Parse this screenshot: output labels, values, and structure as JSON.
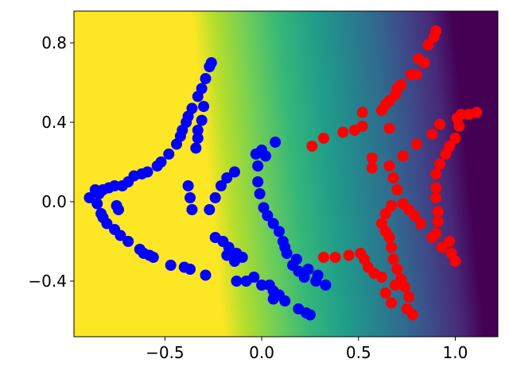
{
  "chart_data": {
    "type": "scatter",
    "xlim": [
      -0.97,
      1.22
    ],
    "ylim": [
      -0.68,
      0.96
    ],
    "xticks": [
      {
        "value": -0.5,
        "label": "−0.5"
      },
      {
        "value": 0.0,
        "label": "0.0"
      },
      {
        "value": 0.5,
        "label": "0.5"
      },
      {
        "value": 1.0,
        "label": "1.0"
      }
    ],
    "yticks": [
      {
        "value": -0.4,
        "label": "−0.4"
      },
      {
        "value": 0.0,
        "label": "0.0"
      },
      {
        "value": 0.4,
        "label": "0.4"
      },
      {
        "value": 0.8,
        "label": "0.8"
      }
    ],
    "series": [
      {
        "color": "#0000ff",
        "x": [
          -0.26,
          -0.27,
          -0.29,
          -0.31,
          -0.33,
          -0.3,
          -0.36,
          -0.38,
          -0.31,
          -0.39,
          -0.41,
          -0.33,
          -0.42,
          -0.33,
          -0.44,
          -0.34,
          -0.48,
          -0.52,
          -0.54,
          -0.59,
          -0.62,
          -0.66,
          -0.69,
          -0.72,
          -0.76,
          -0.79,
          -0.82,
          -0.86,
          -0.89,
          -0.84,
          -0.85,
          -0.83,
          -0.82,
          -0.8,
          -0.76,
          -0.73,
          -0.69,
          -0.63,
          -0.61,
          -0.58,
          -0.56,
          -0.47,
          -0.4,
          -0.37,
          -0.29,
          -0.75,
          -0.74,
          -0.38,
          -0.37,
          -0.36,
          -0.27,
          -0.24,
          -0.21,
          -0.18,
          -0.14,
          -0.03,
          0.0,
          0.07,
          0.02,
          -0.02,
          -0.02,
          -0.01,
          0.01,
          0.03,
          0.06,
          0.09,
          0.11,
          0.12,
          0.13,
          0.16,
          0.19,
          0.22,
          0.28,
          0.33,
          0.29,
          0.24,
          0.18,
          -0.24,
          -0.2,
          -0.17,
          -0.13,
          -0.1,
          -0.18,
          -0.14,
          -0.13,
          -0.08,
          -0.04,
          0.0,
          0.04,
          0.06,
          0.09,
          0.12,
          0.19,
          0.23,
          0.25,
          0.06
        ],
        "values": [
          0.7,
          0.68,
          0.62,
          0.57,
          0.53,
          0.48,
          0.47,
          0.43,
          0.41,
          0.4,
          0.36,
          0.36,
          0.33,
          0.32,
          0.29,
          0.27,
          0.24,
          0.2,
          0.18,
          0.15,
          0.14,
          0.13,
          0.1,
          0.08,
          0.08,
          0.07,
          0.06,
          0.06,
          0.02,
          0.04,
          -0.01,
          -0.06,
          -0.08,
          -0.11,
          -0.14,
          -0.17,
          -0.2,
          -0.24,
          -0.26,
          -0.27,
          -0.28,
          -0.32,
          -0.33,
          -0.34,
          -0.37,
          -0.02,
          -0.04,
          0.08,
          0.02,
          -0.04,
          -0.04,
          0.02,
          0.08,
          0.12,
          0.15,
          0.24,
          0.26,
          0.3,
          0.23,
          0.18,
          0.1,
          0.04,
          -0.03,
          -0.07,
          -0.11,
          -0.15,
          -0.2,
          -0.23,
          -0.26,
          -0.32,
          -0.35,
          -0.38,
          -0.4,
          -0.42,
          -0.37,
          -0.34,
          -0.29,
          -0.18,
          -0.2,
          -0.23,
          -0.26,
          -0.28,
          -0.27,
          -0.3,
          -0.4,
          -0.4,
          -0.38,
          -0.42,
          -0.42,
          -0.45,
          -0.47,
          -0.5,
          -0.54,
          -0.56,
          -0.57,
          -0.49
        ]
      },
      {
        "color": "#ff0000",
        "x": [
          0.9,
          0.89,
          0.86,
          0.81,
          0.84,
          0.8,
          0.77,
          0.72,
          0.7,
          0.69,
          0.66,
          0.64,
          0.62,
          0.52,
          0.48,
          0.42,
          0.32,
          0.26,
          0.52,
          0.66,
          0.57,
          0.57,
          0.66,
          0.73,
          0.8,
          0.88,
          0.92,
          1.01,
          1.03,
          1.07,
          1.11,
          1.02,
          1.0,
          0.97,
          0.95,
          0.92,
          0.9,
          0.9,
          0.9,
          0.91,
          0.91,
          0.9,
          0.97,
          0.93,
          0.98,
          1.0,
          0.88,
          0.82,
          0.79,
          0.76,
          0.73,
          0.7,
          0.68,
          0.67,
          0.64,
          0.62,
          0.64,
          0.66,
          0.67,
          0.68,
          0.7,
          0.72,
          0.74,
          0.76,
          0.75,
          0.78,
          0.69,
          0.64,
          0.67,
          0.62,
          0.58,
          0.55,
          0.53,
          0.51,
          0.45,
          0.38,
          0.32
        ],
        "values": [
          0.86,
          0.83,
          0.79,
          0.72,
          0.7,
          0.64,
          0.64,
          0.59,
          0.57,
          0.54,
          0.51,
          0.49,
          0.46,
          0.38,
          0.36,
          0.35,
          0.32,
          0.28,
          0.45,
          0.37,
          0.22,
          0.17,
          0.18,
          0.23,
          0.29,
          0.34,
          0.39,
          0.42,
          0.44,
          0.44,
          0.45,
          0.38,
          0.32,
          0.28,
          0.24,
          0.19,
          0.14,
          0.07,
          0.02,
          -0.05,
          -0.1,
          -0.16,
          -0.2,
          -0.23,
          -0.26,
          -0.3,
          -0.18,
          -0.11,
          -0.07,
          -0.04,
          -0.01,
          0.06,
          0.12,
          -0.02,
          -0.06,
          -0.11,
          -0.15,
          -0.18,
          -0.23,
          -0.29,
          -0.34,
          -0.39,
          -0.43,
          -0.48,
          -0.54,
          -0.57,
          -0.42,
          -0.46,
          -0.51,
          -0.38,
          -0.36,
          -0.33,
          -0.29,
          -0.26,
          -0.27,
          -0.28,
          -0.28
        ]
      }
    ]
  }
}
